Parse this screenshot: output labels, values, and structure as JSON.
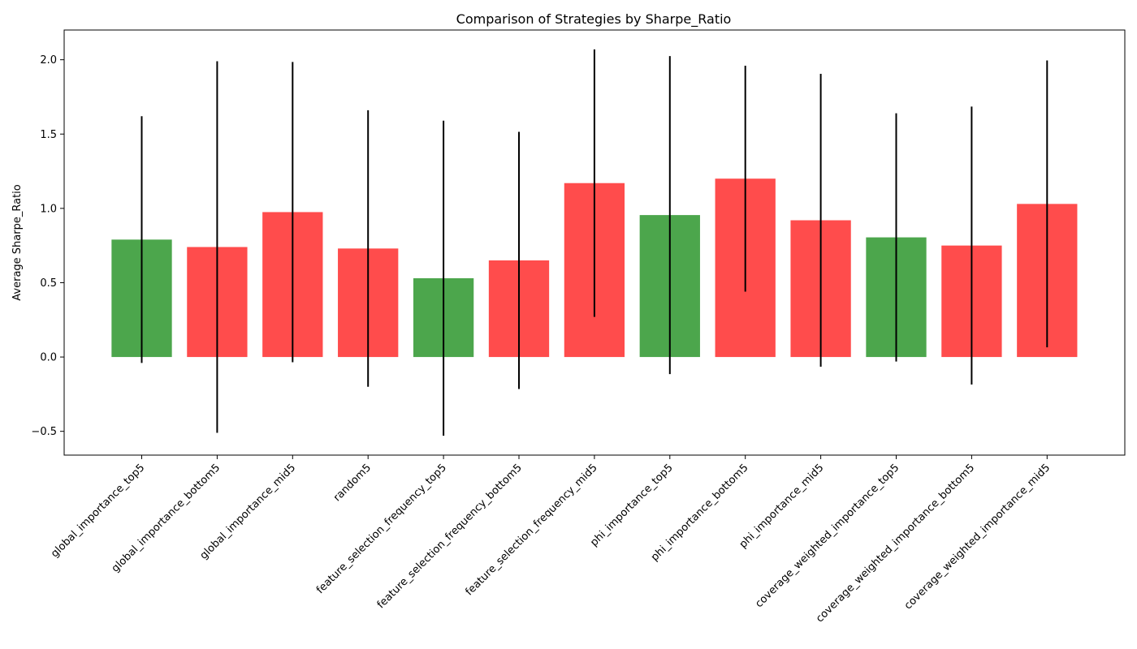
{
  "chart_data": {
    "type": "bar",
    "title": "Comparison of Strategies by Sharpe_Ratio",
    "xlabel": "",
    "ylabel": "Average Sharpe_Ratio",
    "ylim": [
      -0.66,
      2.2
    ],
    "yticks": [
      -0.5,
      0.0,
      0.5,
      1.0,
      1.5,
      2.0
    ],
    "grid": false,
    "categories": [
      "global_importance_top5",
      "global_importance_bottom5",
      "global_importance_mid5",
      "random5",
      "feature_selection_frequency_top5",
      "feature_selection_frequency_bottom5",
      "feature_selection_frequency_mid5",
      "phi_importance_top5",
      "phi_importance_bottom5",
      "phi_importance_mid5",
      "coverage_weighted_importance_top5",
      "coverage_weighted_importance_bottom5",
      "coverage_weighted_importance_mid5"
    ],
    "values": [
      0.79,
      0.74,
      0.975,
      0.73,
      0.53,
      0.65,
      1.17,
      0.955,
      1.2,
      0.92,
      0.805,
      0.75,
      1.03
    ],
    "error": [
      0.83,
      1.25,
      1.01,
      0.93,
      1.06,
      0.865,
      0.9,
      1.07,
      0.76,
      0.985,
      0.835,
      0.935,
      0.965
    ],
    "bar_colors": [
      "#4ca64c",
      "#ff4c4c",
      "#ff4c4c",
      "#ff4c4c",
      "#4ca64c",
      "#ff4c4c",
      "#ff4c4c",
      "#4ca64c",
      "#ff4c4c",
      "#ff4c4c",
      "#4ca64c",
      "#ff4c4c",
      "#ff4c4c"
    ],
    "error_color": "#000000"
  }
}
